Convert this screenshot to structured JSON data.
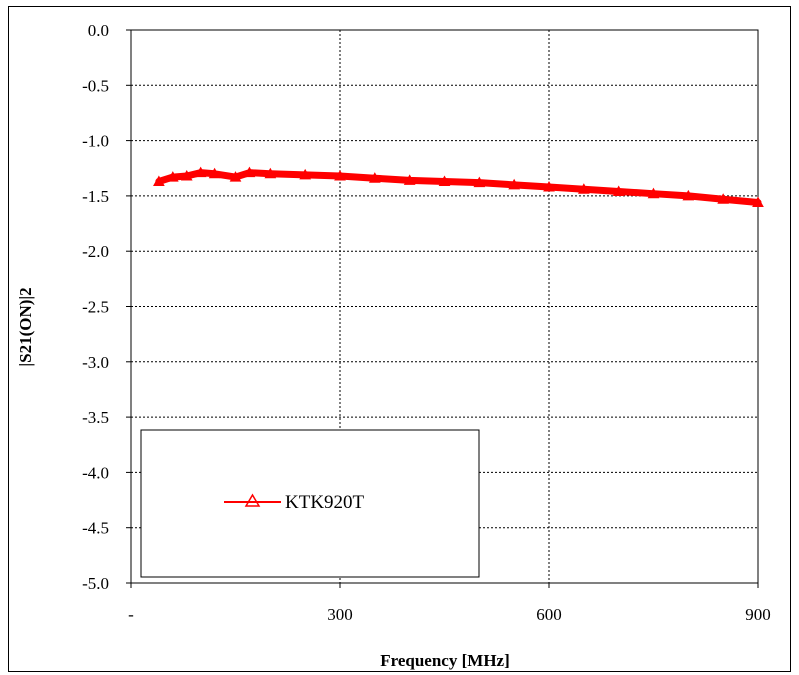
{
  "chart_data": {
    "type": "line",
    "xlabel": "Frequency [MHz]",
    "ylabel": "|S21(ON)|2",
    "xlim": [
      0,
      900
    ],
    "ylim": [
      -5.0,
      0.0
    ],
    "x_ticks": [
      "-",
      "300",
      "600",
      "900"
    ],
    "y_ticks": [
      "0.0",
      "-0.5",
      "-1.0",
      "-1.5",
      "-2.0",
      "-2.5",
      "-3.0",
      "-3.5",
      "-4.0",
      "-4.5",
      "-5.0"
    ],
    "grid": true,
    "legend_position": "bottom-left",
    "series": [
      {
        "name": "KTK920T",
        "color": "#ff0000",
        "marker": "triangle",
        "x": [
          40,
          60,
          80,
          100,
          120,
          150,
          170,
          200,
          250,
          300,
          350,
          400,
          450,
          500,
          550,
          600,
          650,
          700,
          750,
          800,
          850,
          900
        ],
        "y": [
          -1.37,
          -1.33,
          -1.32,
          -1.29,
          -1.3,
          -1.33,
          -1.29,
          -1.3,
          -1.31,
          -1.32,
          -1.34,
          -1.36,
          -1.37,
          -1.38,
          -1.4,
          -1.42,
          -1.44,
          -1.46,
          -1.48,
          -1.5,
          -1.53,
          -1.56
        ]
      }
    ]
  }
}
